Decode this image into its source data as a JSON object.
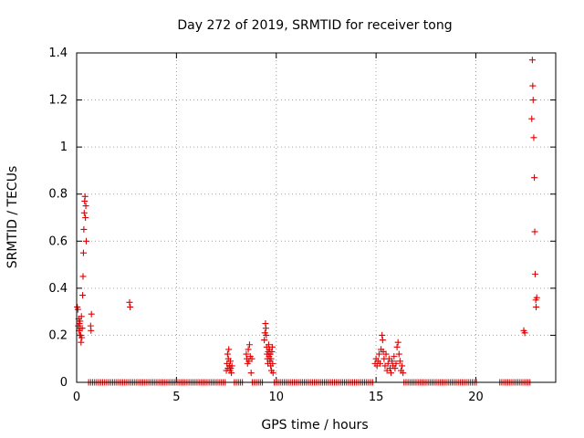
{
  "chart_data": {
    "type": "scatter",
    "title": "Day 272 of 2019, SRMTID for receiver tong",
    "xlabel": "GPS time / hours",
    "ylabel": "SRMTID / TECUs",
    "xlim": [
      0,
      24
    ],
    "ylim": [
      0,
      1.4
    ],
    "xticks": [
      0,
      5,
      10,
      15,
      20
    ],
    "yticks": [
      0,
      0.2,
      0.4,
      0.6,
      0.8,
      1,
      1.2,
      1.4
    ],
    "grid": true,
    "marker": "plus",
    "color": "#e00000",
    "zero_segments": [
      [
        0.6,
        7.5
      ],
      [
        7.9,
        8.4
      ],
      [
        8.8,
        9.4
      ],
      [
        9.9,
        14.9
      ],
      [
        16.4,
        20.1
      ],
      [
        21.2,
        22.8
      ]
    ],
    "points": [
      [
        0.03,
        0.32
      ],
      [
        0.06,
        0.31
      ],
      [
        0.08,
        0.24
      ],
      [
        0.1,
        0.27
      ],
      [
        0.12,
        0.22
      ],
      [
        0.14,
        0.25
      ],
      [
        0.15,
        0.2
      ],
      [
        0.17,
        0.26
      ],
      [
        0.18,
        0.23
      ],
      [
        0.2,
        0.2
      ],
      [
        0.22,
        0.17
      ],
      [
        0.24,
        0.28
      ],
      [
        0.26,
        0.19
      ],
      [
        0.28,
        0.23
      ],
      [
        0.3,
        0.37
      ],
      [
        0.32,
        0.45
      ],
      [
        0.34,
        0.55
      ],
      [
        0.36,
        0.65
      ],
      [
        0.38,
        0.72
      ],
      [
        0.4,
        0.77
      ],
      [
        0.42,
        0.79
      ],
      [
        0.44,
        0.7
      ],
      [
        0.46,
        0.75
      ],
      [
        0.48,
        0.6
      ],
      [
        0.7,
        0.24
      ],
      [
        0.72,
        0.22
      ],
      [
        0.74,
        0.29
      ],
      [
        2.65,
        0.34
      ],
      [
        2.68,
        0.32
      ],
      [
        7.5,
        0.05
      ],
      [
        7.53,
        0.08
      ],
      [
        7.56,
        0.12
      ],
      [
        7.58,
        0.06
      ],
      [
        7.6,
        0.1
      ],
      [
        7.62,
        0.14
      ],
      [
        7.65,
        0.07
      ],
      [
        7.68,
        0.05
      ],
      [
        7.7,
        0.09
      ],
      [
        7.72,
        0.06
      ],
      [
        7.75,
        0.04
      ],
      [
        7.78,
        0.07
      ],
      [
        8.5,
        0.12
      ],
      [
        8.53,
        0.1
      ],
      [
        8.56,
        0.08
      ],
      [
        8.6,
        0.14
      ],
      [
        8.63,
        0.09
      ],
      [
        8.66,
        0.16
      ],
      [
        8.7,
        0.11
      ],
      [
        8.74,
        0.04
      ],
      [
        8.78,
        0.1
      ],
      [
        9.4,
        0.18
      ],
      [
        9.43,
        0.21
      ],
      [
        9.46,
        0.25
      ],
      [
        9.48,
        0.23
      ],
      [
        9.5,
        0.2
      ],
      [
        9.52,
        0.15
      ],
      [
        9.54,
        0.12
      ],
      [
        9.56,
        0.1
      ],
      [
        9.58,
        0.08
      ],
      [
        9.6,
        0.13
      ],
      [
        9.62,
        0.16
      ],
      [
        9.64,
        0.11
      ],
      [
        9.66,
        0.14
      ],
      [
        9.68,
        0.09
      ],
      [
        9.7,
        0.12
      ],
      [
        9.72,
        0.07
      ],
      [
        9.74,
        0.1
      ],
      [
        9.76,
        0.05
      ],
      [
        9.78,
        0.13
      ],
      [
        9.8,
        0.15
      ],
      [
        9.82,
        0.08
      ],
      [
        9.84,
        0.04
      ],
      [
        14.95,
        0.08
      ],
      [
        15.0,
        0.1
      ],
      [
        15.05,
        0.07
      ],
      [
        15.1,
        0.09
      ],
      [
        15.15,
        0.12
      ],
      [
        15.2,
        0.08
      ],
      [
        15.25,
        0.14
      ],
      [
        15.3,
        0.2
      ],
      [
        15.33,
        0.18
      ],
      [
        15.36,
        0.13
      ],
      [
        15.4,
        0.1
      ],
      [
        15.45,
        0.07
      ],
      [
        15.5,
        0.12
      ],
      [
        15.55,
        0.05
      ],
      [
        15.6,
        0.08
      ],
      [
        15.65,
        0.1
      ],
      [
        15.7,
        0.06
      ],
      [
        15.75,
        0.04
      ],
      [
        15.8,
        0.09
      ],
      [
        15.85,
        0.07
      ],
      [
        15.9,
        0.11
      ],
      [
        15.95,
        0.06
      ],
      [
        16.0,
        0.08
      ],
      [
        16.05,
        0.15
      ],
      [
        16.1,
        0.17
      ],
      [
        16.15,
        0.12
      ],
      [
        16.2,
        0.09
      ],
      [
        16.25,
        0.05
      ],
      [
        16.3,
        0.07
      ],
      [
        16.35,
        0.04
      ],
      [
        22.4,
        0.22
      ],
      [
        22.45,
        0.21
      ],
      [
        22.8,
        1.12
      ],
      [
        22.83,
        1.37
      ],
      [
        22.85,
        1.26
      ],
      [
        22.87,
        1.2
      ],
      [
        22.9,
        1.04
      ],
      [
        22.93,
        0.87
      ],
      [
        22.95,
        0.64
      ],
      [
        22.97,
        0.46
      ],
      [
        23.0,
        0.35
      ],
      [
        23.02,
        0.32
      ],
      [
        23.05,
        0.36
      ]
    ]
  }
}
